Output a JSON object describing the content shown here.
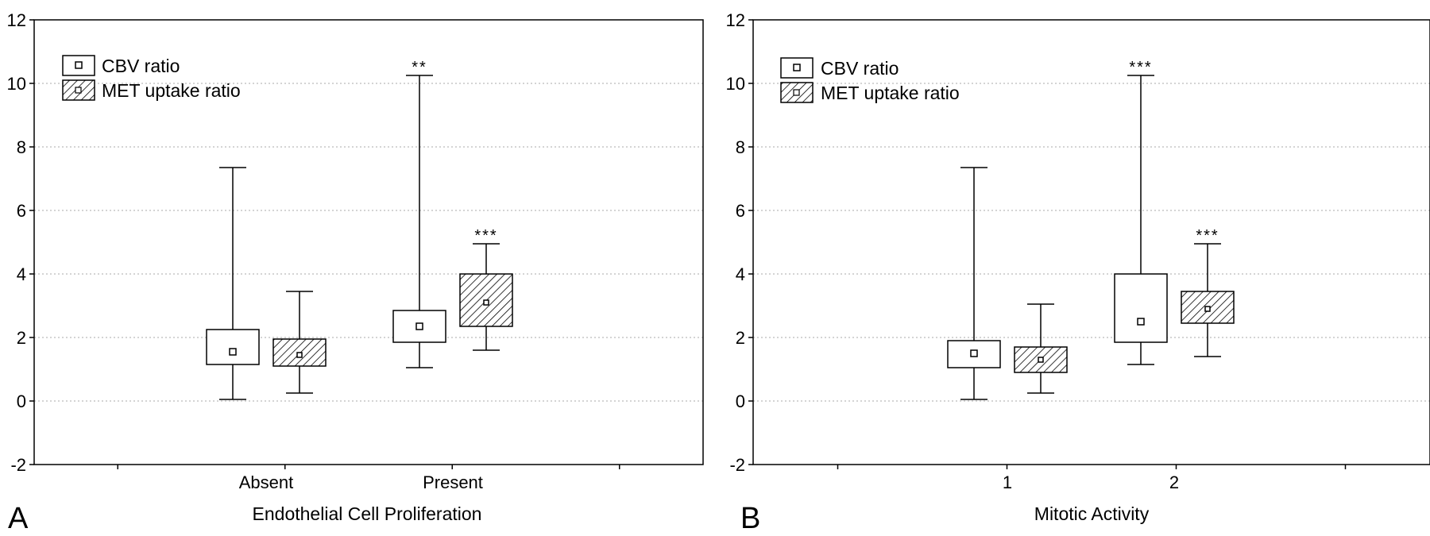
{
  "colors": {
    "hatch": "#000000",
    "box_fill": "#ffffff",
    "grid": "#aaaaaa"
  },
  "chart_data": [
    {
      "type": "box",
      "panel_label": "A",
      "title": "",
      "xlabel": "Endothelial Cell Proliferation",
      "ylabel": "",
      "ylim": [
        -2,
        12
      ],
      "yticks": [
        "-2",
        "0",
        "2",
        "4",
        "6",
        "8",
        "10",
        "12"
      ],
      "grid": "horizontal-dotted",
      "legend_placement": "top-left",
      "categories": [
        "Absent",
        "Present"
      ],
      "series": [
        {
          "name": "CBV ratio",
          "style": "open",
          "boxes": [
            {
              "min": 0.05,
              "q1": 1.15,
              "center": 1.55,
              "q3": 2.25,
              "max": 7.35,
              "annotation": ""
            },
            {
              "min": 1.05,
              "q1": 1.85,
              "center": 2.35,
              "q3": 2.85,
              "max": 10.25,
              "annotation": "**"
            }
          ]
        },
        {
          "name": "MET uptake ratio",
          "style": "hatched",
          "boxes": [
            {
              "min": 0.25,
              "q1": 1.1,
              "center": 1.45,
              "q3": 1.95,
              "max": 3.45,
              "annotation": ""
            },
            {
              "min": 1.6,
              "q1": 2.35,
              "center": 3.1,
              "q3": 4.0,
              "max": 4.95,
              "annotation": "***"
            }
          ]
        }
      ]
    },
    {
      "type": "box",
      "panel_label": "B",
      "title": "",
      "xlabel": "Mitotic Activity",
      "ylabel": "",
      "ylim": [
        -2,
        12
      ],
      "yticks": [
        "-2",
        "0",
        "2",
        "4",
        "6",
        "8",
        "10",
        "12"
      ],
      "grid": "horizontal-dotted",
      "legend_placement": "top-left",
      "categories": [
        "1",
        "2"
      ],
      "series": [
        {
          "name": "CBV ratio",
          "style": "open",
          "boxes": [
            {
              "min": 0.05,
              "q1": 1.05,
              "center": 1.5,
              "q3": 1.9,
              "max": 7.35,
              "annotation": ""
            },
            {
              "min": 1.15,
              "q1": 1.85,
              "center": 2.5,
              "q3": 4.0,
              "max": 10.25,
              "annotation": "***"
            }
          ]
        },
        {
          "name": "MET uptake ratio",
          "style": "hatched",
          "boxes": [
            {
              "min": 0.25,
              "q1": 0.9,
              "center": 1.3,
              "q3": 1.7,
              "max": 3.05,
              "annotation": ""
            },
            {
              "min": 1.4,
              "q1": 2.45,
              "center": 2.9,
              "q3": 3.45,
              "max": 4.95,
              "annotation": "***"
            }
          ]
        }
      ]
    }
  ]
}
